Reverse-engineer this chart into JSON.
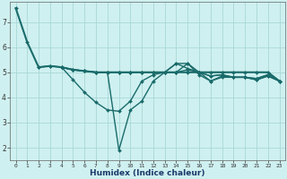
{
  "title": "",
  "xlabel": "Humidex (Indice chaleur)",
  "ylabel": "",
  "background_color": "#cff0f0",
  "grid_color": "#a8d8d8",
  "line_color": "#1a6b6b",
  "xlim": [
    -0.5,
    23.5
  ],
  "ylim": [
    1.5,
    7.8
  ],
  "yticks": [
    2,
    3,
    4,
    5,
    6,
    7
  ],
  "xticks": [
    0,
    1,
    2,
    3,
    4,
    5,
    6,
    7,
    8,
    9,
    10,
    11,
    12,
    13,
    14,
    15,
    16,
    17,
    18,
    19,
    20,
    21,
    22,
    23
  ],
  "lines": [
    {
      "x": [
        0,
        1,
        2,
        3,
        4,
        5,
        6,
        7,
        8,
        9,
        10,
        11,
        12,
        13,
        14,
        15,
        16,
        17,
        18,
        19,
        20,
        21,
        22,
        23
      ],
      "y": [
        7.55,
        6.2,
        5.2,
        5.25,
        5.2,
        5.1,
        5.05,
        5.0,
        5.0,
        5.0,
        5.0,
        5.0,
        5.0,
        5.0,
        5.0,
        5.0,
        5.0,
        5.0,
        5.0,
        5.0,
        5.0,
        5.0,
        5.0,
        4.65
      ],
      "linewidth": 1.5,
      "markersize": 2.0
    },
    {
      "x": [
        2,
        3,
        4,
        5,
        6,
        7,
        8,
        9,
        10,
        11,
        12,
        13,
        14,
        15,
        16,
        17,
        18,
        19,
        20,
        21,
        22,
        23
      ],
      "y": [
        5.2,
        5.25,
        5.2,
        4.7,
        4.2,
        3.8,
        3.5,
        3.45,
        3.85,
        4.65,
        4.9,
        5.0,
        5.35,
        5.35,
        4.9,
        4.65,
        4.8,
        4.8,
        4.8,
        4.7,
        4.85,
        4.65
      ],
      "linewidth": 1.0,
      "markersize": 2.0
    },
    {
      "x": [
        4,
        5,
        6,
        7,
        8,
        9,
        10,
        11,
        12,
        13,
        14,
        15,
        16,
        17,
        18,
        19,
        20,
        21,
        22,
        23
      ],
      "y": [
        5.2,
        5.1,
        5.05,
        5.0,
        5.0,
        1.9,
        3.5,
        3.85,
        4.65,
        5.0,
        5.0,
        5.35,
        5.0,
        4.65,
        4.85,
        4.8,
        4.8,
        4.7,
        4.85,
        4.65
      ],
      "linewidth": 1.0,
      "markersize": 2.0
    },
    {
      "x": [
        4,
        5,
        6,
        7,
        8,
        9,
        10,
        11,
        12,
        13,
        14,
        15,
        16,
        17,
        18,
        19,
        20,
        21,
        22,
        23
      ],
      "y": [
        5.2,
        5.1,
        5.05,
        5.0,
        5.0,
        5.0,
        5.0,
        5.0,
        5.0,
        5.0,
        5.35,
        5.15,
        5.0,
        4.85,
        4.9,
        4.8,
        4.8,
        4.75,
        4.9,
        4.65
      ],
      "linewidth": 1.0,
      "markersize": 2.0
    },
    {
      "x": [
        4,
        5,
        6,
        7,
        8,
        9,
        10,
        11,
        12,
        13,
        14,
        15,
        16,
        17,
        18,
        19,
        20,
        21,
        22,
        23
      ],
      "y": [
        5.2,
        5.1,
        5.05,
        5.0,
        5.0,
        5.0,
        5.0,
        5.0,
        5.0,
        5.0,
        5.0,
        5.1,
        5.0,
        4.85,
        4.9,
        4.8,
        4.8,
        4.75,
        4.9,
        4.65
      ],
      "linewidth": 1.0,
      "markersize": 2.0
    }
  ]
}
